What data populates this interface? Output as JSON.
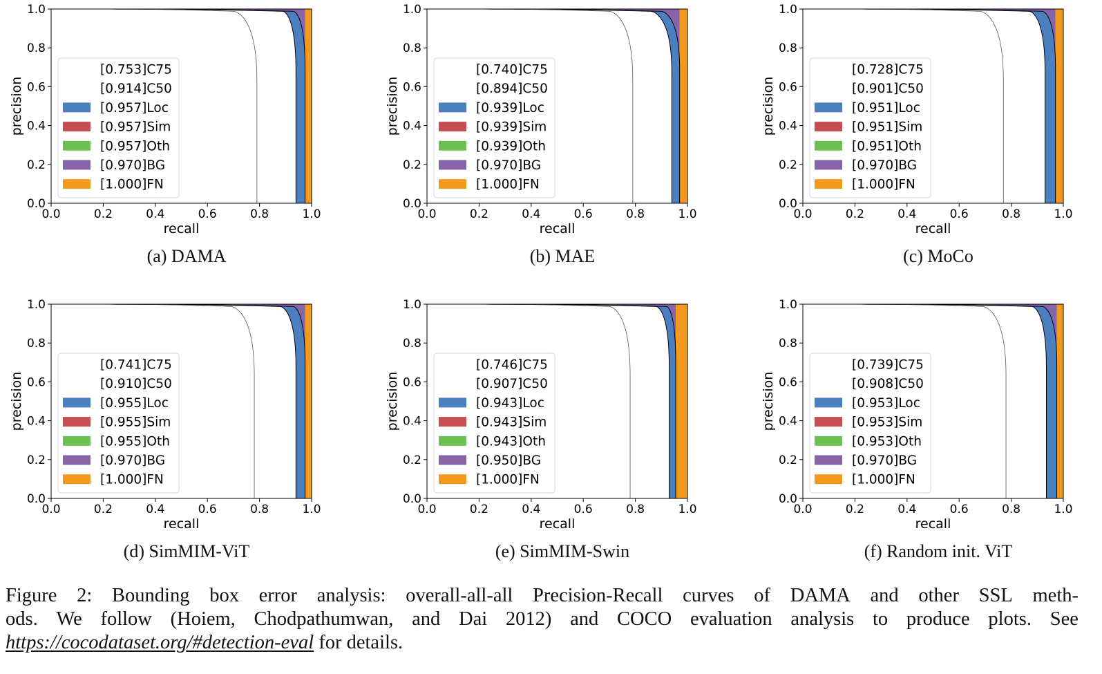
{
  "chart_data": [
    {
      "type": "area",
      "subcaption": "(a) DAMA",
      "xlabel": "recall",
      "ylabel": "precision",
      "xlim": [
        0.0,
        1.0
      ],
      "ylim": [
        0.0,
        1.0
      ],
      "xticks": [
        "0.0",
        "0.2",
        "0.4",
        "0.6",
        "0.8",
        "1.0"
      ],
      "yticks": [
        "0.0",
        "0.2",
        "0.4",
        "0.6",
        "0.8",
        "1.0"
      ],
      "legend_position": "lower-left",
      "series": [
        {
          "label": "[0.753]C75",
          "value": 0.753,
          "x_end": 0.79,
          "x_knee": 0.7
        },
        {
          "label": "[0.914]C50",
          "value": 0.914,
          "x_end": 0.94,
          "x_knee": 0.89
        },
        {
          "label": "[0.957]Loc",
          "value": 0.957,
          "x_end": 0.975,
          "x_knee": 0.93
        },
        {
          "label": "[0.957]Sim",
          "value": 0.957,
          "x_end": 0.975,
          "x_knee": 0.93
        },
        {
          "label": "[0.957]Oth",
          "value": 0.957,
          "x_end": 0.975,
          "x_knee": 0.93
        },
        {
          "label": "[0.970]BG",
          "value": 0.97,
          "x_end": 0.975
        },
        {
          "label": "[1.000]FN",
          "value": 1.0,
          "x_end": 1.0
        }
      ]
    },
    {
      "type": "area",
      "subcaption": "(b) MAE",
      "xlabel": "recall",
      "ylabel": "precision",
      "xlim": [
        0.0,
        1.0
      ],
      "ylim": [
        0.0,
        1.0
      ],
      "xticks": [
        "0.0",
        "0.2",
        "0.4",
        "0.6",
        "0.8",
        "1.0"
      ],
      "yticks": [
        "0.0",
        "0.2",
        "0.4",
        "0.6",
        "0.8",
        "1.0"
      ],
      "legend_position": "lower-left",
      "series": [
        {
          "label": "[0.740]C75",
          "value": 0.74,
          "x_end": 0.79,
          "x_knee": 0.7
        },
        {
          "label": "[0.894]C50",
          "value": 0.894,
          "x_end": 0.94,
          "x_knee": 0.86
        },
        {
          "label": "[0.939]Loc",
          "value": 0.939,
          "x_end": 0.97,
          "x_knee": 0.9
        },
        {
          "label": "[0.939]Sim",
          "value": 0.939,
          "x_end": 0.97,
          "x_knee": 0.9
        },
        {
          "label": "[0.939]Oth",
          "value": 0.939,
          "x_end": 0.97,
          "x_knee": 0.9
        },
        {
          "label": "[0.970]BG",
          "value": 0.97,
          "x_end": 0.97
        },
        {
          "label": "[1.000]FN",
          "value": 1.0,
          "x_end": 1.0
        }
      ]
    },
    {
      "type": "area",
      "subcaption": "(c) MoCo",
      "xlabel": "recall",
      "ylabel": "precision",
      "xlim": [
        0.0,
        1.0
      ],
      "ylim": [
        0.0,
        1.0
      ],
      "xticks": [
        "0.0",
        "0.2",
        "0.4",
        "0.6",
        "0.8",
        "1.0"
      ],
      "yticks": [
        "0.0",
        "0.2",
        "0.4",
        "0.6",
        "0.8",
        "1.0"
      ],
      "legend_position": "lower-left",
      "series": [
        {
          "label": "[0.728]C75",
          "value": 0.728,
          "x_end": 0.77,
          "x_knee": 0.68
        },
        {
          "label": "[0.901]C50",
          "value": 0.901,
          "x_end": 0.93,
          "x_knee": 0.87
        },
        {
          "label": "[0.951]Loc",
          "value": 0.951,
          "x_end": 0.97,
          "x_knee": 0.92
        },
        {
          "label": "[0.951]Sim",
          "value": 0.951,
          "x_end": 0.97,
          "x_knee": 0.92
        },
        {
          "label": "[0.951]Oth",
          "value": 0.951,
          "x_end": 0.97,
          "x_knee": 0.92
        },
        {
          "label": "[0.970]BG",
          "value": 0.97,
          "x_end": 0.97
        },
        {
          "label": "[1.000]FN",
          "value": 1.0,
          "x_end": 1.0
        }
      ]
    },
    {
      "type": "area",
      "subcaption": "(d) SimMIM-ViT",
      "xlabel": "recall",
      "ylabel": "precision",
      "xlim": [
        0.0,
        1.0
      ],
      "ylim": [
        0.0,
        1.0
      ],
      "xticks": [
        "0.0",
        "0.2",
        "0.4",
        "0.6",
        "0.8",
        "1.0"
      ],
      "yticks": [
        "0.0",
        "0.2",
        "0.4",
        "0.6",
        "0.8",
        "1.0"
      ],
      "legend_position": "lower-left",
      "series": [
        {
          "label": "[0.741]C75",
          "value": 0.741,
          "x_end": 0.78,
          "x_knee": 0.69
        },
        {
          "label": "[0.910]C50",
          "value": 0.91,
          "x_end": 0.94,
          "x_knee": 0.88
        },
        {
          "label": "[0.955]Loc",
          "value": 0.955,
          "x_end": 0.975,
          "x_knee": 0.93
        },
        {
          "label": "[0.955]Sim",
          "value": 0.955,
          "x_end": 0.975,
          "x_knee": 0.93
        },
        {
          "label": "[0.955]Oth",
          "value": 0.955,
          "x_end": 0.975,
          "x_knee": 0.93
        },
        {
          "label": "[0.970]BG",
          "value": 0.97,
          "x_end": 0.975
        },
        {
          "label": "[1.000]FN",
          "value": 1.0,
          "x_end": 1.0
        }
      ]
    },
    {
      "type": "area",
      "subcaption": "(e) SimMIM-Swin",
      "xlabel": "recall",
      "ylabel": "precision",
      "xlim": [
        0.0,
        1.0
      ],
      "ylim": [
        0.0,
        1.0
      ],
      "xticks": [
        "0.0",
        "0.2",
        "0.4",
        "0.6",
        "0.8",
        "1.0"
      ],
      "yticks": [
        "0.0",
        "0.2",
        "0.4",
        "0.6",
        "0.8",
        "1.0"
      ],
      "legend_position": "lower-left",
      "series": [
        {
          "label": "[0.746]C75",
          "value": 0.746,
          "x_end": 0.78,
          "x_knee": 0.7
        },
        {
          "label": "[0.907]C50",
          "value": 0.907,
          "x_end": 0.93,
          "x_knee": 0.88
        },
        {
          "label": "[0.943]Loc",
          "value": 0.943,
          "x_end": 0.955,
          "x_knee": 0.92
        },
        {
          "label": "[0.943]Sim",
          "value": 0.943,
          "x_end": 0.955,
          "x_knee": 0.92
        },
        {
          "label": "[0.943]Oth",
          "value": 0.943,
          "x_end": 0.955,
          "x_knee": 0.92
        },
        {
          "label": "[0.950]BG",
          "value": 0.95,
          "x_end": 0.955
        },
        {
          "label": "[1.000]FN",
          "value": 1.0,
          "x_end": 1.0
        }
      ]
    },
    {
      "type": "area",
      "subcaption": "(f) Random init. ViT",
      "xlabel": "recall",
      "ylabel": "precision",
      "xlim": [
        0.0,
        1.0
      ],
      "ylim": [
        0.0,
        1.0
      ],
      "xticks": [
        "0.0",
        "0.2",
        "0.4",
        "0.6",
        "0.8",
        "1.0"
      ],
      "yticks": [
        "0.0",
        "0.2",
        "0.4",
        "0.6",
        "0.8",
        "1.0"
      ],
      "legend_position": "lower-left",
      "series": [
        {
          "label": "[0.739]C75",
          "value": 0.739,
          "x_end": 0.78,
          "x_knee": 0.69
        },
        {
          "label": "[0.908]C50",
          "value": 0.908,
          "x_end": 0.935,
          "x_knee": 0.88
        },
        {
          "label": "[0.953]Loc",
          "value": 0.953,
          "x_end": 0.975,
          "x_knee": 0.92
        },
        {
          "label": "[0.953]Sim",
          "value": 0.953,
          "x_end": 0.975,
          "x_knee": 0.92
        },
        {
          "label": "[0.953]Oth",
          "value": 0.953,
          "x_end": 0.975,
          "x_knee": 0.92
        },
        {
          "label": "[0.970]BG",
          "value": 0.97,
          "x_end": 0.975
        },
        {
          "label": "[1.000]FN",
          "value": 1.0,
          "x_end": 1.0
        }
      ]
    }
  ],
  "colors": {
    "C75": "#ffffff",
    "C50": "#ffffff",
    "Loc": "#4c7fbf",
    "Sim": "#c44e52",
    "Oth": "#6cc251",
    "BG": "#8664aa",
    "FN": "#f39a1e"
  },
  "caption": {
    "line1": [
      "Figure",
      "2:",
      "Bounding",
      "box",
      "error",
      "analysis:",
      "overall-all-all",
      "Precision-Recall",
      "curves",
      "of",
      "DAMA",
      "and",
      "other",
      "SSL",
      "meth-"
    ],
    "line2": [
      "ods.",
      "We",
      "follow",
      "(Hoiem,",
      "Chodpathumwan,",
      "and",
      "Dai",
      "2012)",
      "and",
      "COCO",
      "evaluation",
      "analysis",
      "to",
      "produce",
      "plots.",
      "See"
    ],
    "url": "https://cocodataset.org/#detection-eval",
    "tail": " for details."
  }
}
